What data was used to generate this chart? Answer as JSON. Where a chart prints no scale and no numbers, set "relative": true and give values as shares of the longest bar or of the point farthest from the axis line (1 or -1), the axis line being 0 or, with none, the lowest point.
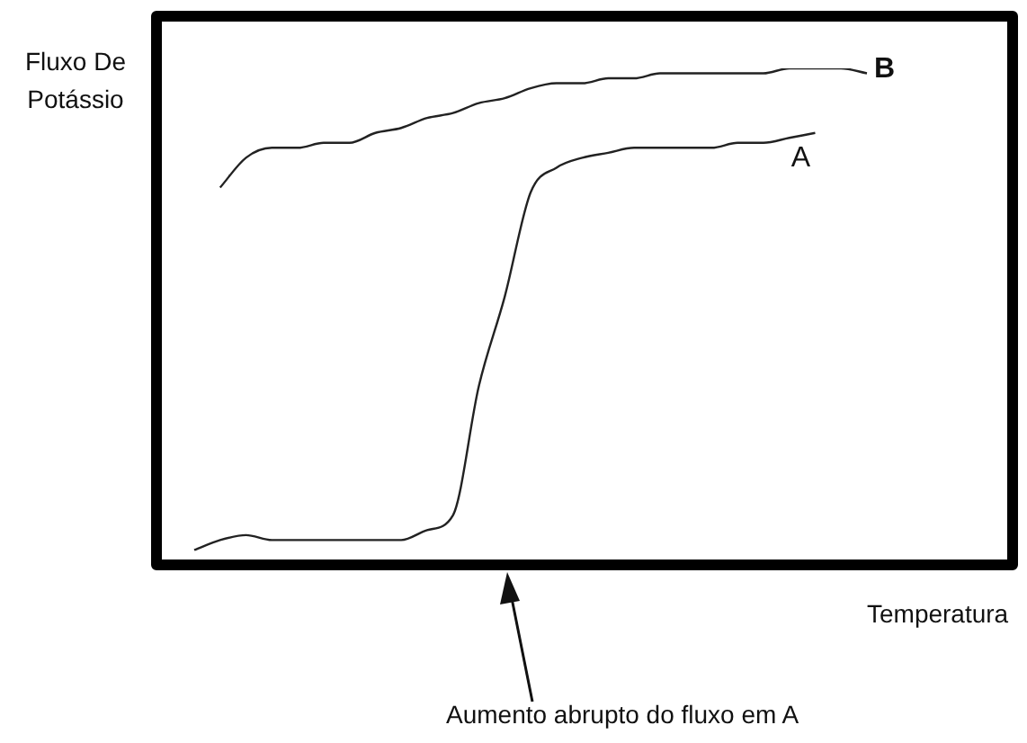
{
  "chart_data": {
    "type": "line",
    "relative": true,
    "xlabel": "Temperatura",
    "ylabel": "Fluxo De Potássio",
    "annotations": [
      "Aumento abrupto do fluxo em A"
    ],
    "categories": [
      null,
      null,
      null,
      null,
      null,
      null,
      null,
      null,
      null,
      null,
      null,
      null,
      null,
      null,
      null,
      null,
      null,
      null,
      null,
      null,
      null,
      null,
      null,
      null,
      null,
      null,
      null
    ],
    "series": [
      {
        "name": "A",
        "color": "#222222",
        "values": [
          0.03,
          0.05,
          0.06,
          0.05,
          0.05,
          0.05,
          0.05,
          0.05,
          0.05,
          0.07,
          0.1,
          0.36,
          0.54,
          0.75,
          0.8,
          0.82,
          0.83,
          0.84,
          0.84,
          0.84,
          0.84,
          0.85,
          0.85,
          0.86,
          0.87,
          null,
          null
        ]
      },
      {
        "name": "B",
        "color": "#222222",
        "values": [
          null,
          0.76,
          0.82,
          0.84,
          0.84,
          0.85,
          0.85,
          0.87,
          0.88,
          0.9,
          0.91,
          0.93,
          0.94,
          0.96,
          0.97,
          0.97,
          0.98,
          0.98,
          0.99,
          0.99,
          0.99,
          0.99,
          0.99,
          1,
          1,
          1,
          0.99
        ]
      }
    ]
  }
}
